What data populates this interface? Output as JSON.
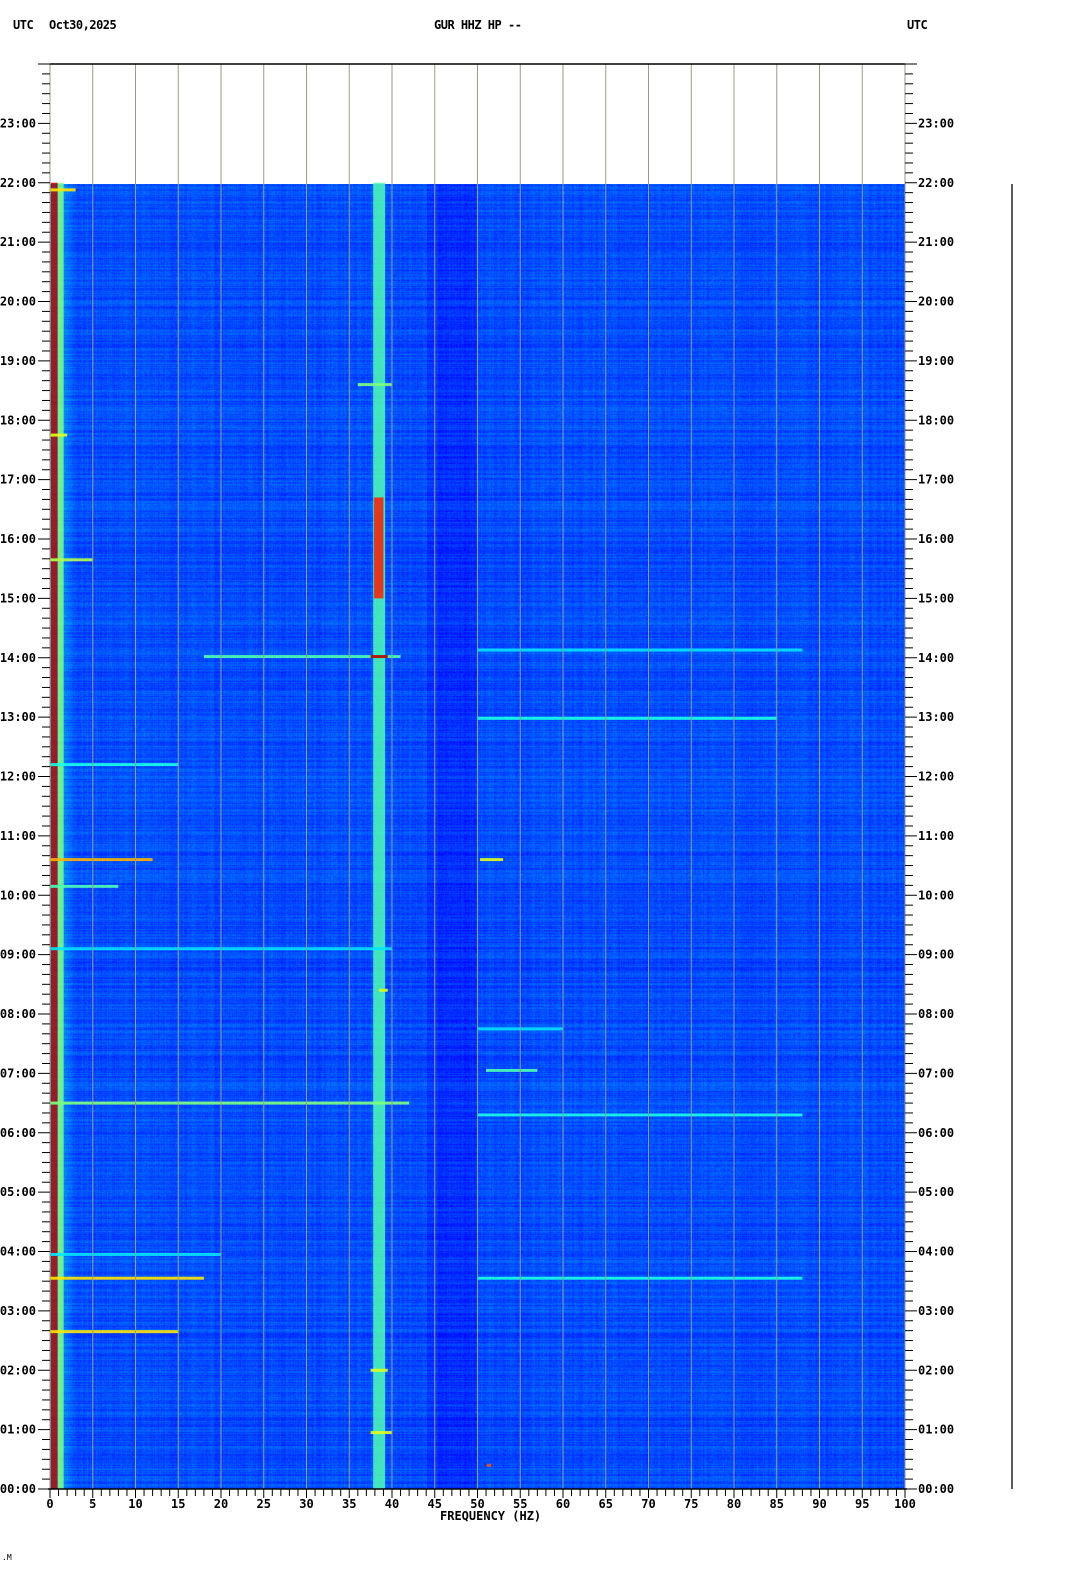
{
  "header": {
    "left_tz": "UTC",
    "date": "Oct30,2025",
    "title": "GUR HHZ HP --",
    "right_tz": "UTC"
  },
  "chart_data": {
    "type": "heatmap",
    "subtype": "spectrogram",
    "title": "GUR HHZ HP --",
    "xlabel": "FREQUENCY (HZ)",
    "ylabel": "",
    "xlim": [
      0,
      100
    ],
    "ylim_hours": [
      0,
      24
    ],
    "data_extent_hours": [
      0,
      22
    ],
    "grid": true,
    "grid_every_hz": 5,
    "colormap": "jet",
    "colors": {
      "background": "#0a0cb0",
      "grid": "#9a9a8a",
      "low": "#00008f",
      "high": "#d00000"
    },
    "x_ticks": [
      "0",
      "5",
      "10",
      "15",
      "20",
      "25",
      "30",
      "35",
      "40",
      "45",
      "50",
      "55",
      "60",
      "65",
      "70",
      "75",
      "80",
      "85",
      "90",
      "95",
      "100"
    ],
    "y_ticks": [
      "00:00",
      "01:00",
      "02:00",
      "03:00",
      "04:00",
      "05:00",
      "06:00",
      "07:00",
      "08:00",
      "09:00",
      "10:00",
      "11:00",
      "12:00",
      "13:00",
      "14:00",
      "15:00",
      "16:00",
      "17:00",
      "18:00",
      "19:00",
      "20:00",
      "21:00",
      "22:00",
      "23:00"
    ],
    "persistent_lines": [
      {
        "freq": [
          0.1,
          0.9
        ],
        "hours": [
          0,
          22
        ],
        "intensity": 0.95
      },
      {
        "freq": [
          0.9,
          1.6
        ],
        "hours": [
          0,
          22
        ],
        "intensity": 0.5
      },
      {
        "freq": [
          37.8,
          39.2
        ],
        "hours": [
          0,
          22
        ],
        "intensity": 0.45
      },
      {
        "freq": [
          37.9,
          39.0
        ],
        "hours": [
          15.0,
          16.7
        ],
        "intensity": 0.85
      }
    ],
    "events": [
      {
        "hour": 21.88,
        "freq": [
          0,
          3
        ],
        "intensity": 0.65
      },
      {
        "hour": 18.6,
        "freq": [
          36,
          40
        ],
        "intensity": 0.5
      },
      {
        "hour": 17.75,
        "freq": [
          0,
          2
        ],
        "intensity": 0.6
      },
      {
        "hour": 15.65,
        "freq": [
          0,
          5
        ],
        "intensity": 0.55
      },
      {
        "hour": 14.02,
        "freq": [
          18,
          41
        ],
        "intensity": 0.45
      },
      {
        "hour": 14.02,
        "freq": [
          37.5,
          39.5
        ],
        "intensity": 0.95
      },
      {
        "hour": 14.13,
        "freq": [
          50,
          88
        ],
        "intensity": 0.35
      },
      {
        "hour": 12.98,
        "freq": [
          50,
          85
        ],
        "intensity": 0.4
      },
      {
        "hour": 12.2,
        "freq": [
          0,
          15
        ],
        "intensity": 0.4
      },
      {
        "hour": 10.6,
        "freq": [
          0,
          12
        ],
        "intensity": 0.7
      },
      {
        "hour": 10.6,
        "freq": [
          50.3,
          53
        ],
        "intensity": 0.6
      },
      {
        "hour": 10.15,
        "freq": [
          0,
          8
        ],
        "intensity": 0.45
      },
      {
        "hour": 9.1,
        "freq": [
          0,
          40
        ],
        "intensity": 0.35
      },
      {
        "hour": 8.4,
        "freq": [
          38.5,
          39.5
        ],
        "intensity": 0.6
      },
      {
        "hour": 7.75,
        "freq": [
          50,
          60
        ],
        "intensity": 0.35
      },
      {
        "hour": 7.05,
        "freq": [
          51,
          57
        ],
        "intensity": 0.45
      },
      {
        "hour": 6.5,
        "freq": [
          0,
          42
        ],
        "intensity": 0.5
      },
      {
        "hour": 6.3,
        "freq": [
          50,
          88
        ],
        "intensity": 0.4
      },
      {
        "hour": 3.95,
        "freq": [
          0,
          20
        ],
        "intensity": 0.35
      },
      {
        "hour": 3.55,
        "freq": [
          0,
          18
        ],
        "intensity": 0.65
      },
      {
        "hour": 3.55,
        "freq": [
          50,
          88
        ],
        "intensity": 0.4
      },
      {
        "hour": 2.65,
        "freq": [
          0,
          15
        ],
        "intensity": 0.65
      },
      {
        "hour": 2.0,
        "freq": [
          37.5,
          39.5
        ],
        "intensity": 0.6
      },
      {
        "hour": 0.95,
        "freq": [
          37.5,
          40
        ],
        "intensity": 0.6
      },
      {
        "hour": 0.4,
        "freq": [
          51.1,
          51.6
        ],
        "intensity": 0.8
      }
    ]
  }
}
